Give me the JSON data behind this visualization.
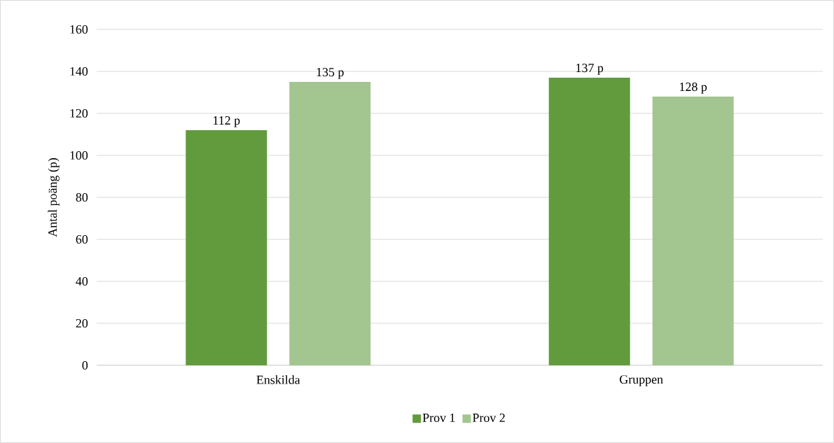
{
  "chart_data": {
    "type": "bar",
    "ylabel": "Antal poäng (p)",
    "categories": [
      "Enskilda",
      "Gruppen"
    ],
    "series": [
      {
        "name": "Prov 1",
        "color": "#629b3d",
        "values": [
          112,
          137
        ],
        "value_labels": [
          "112 p",
          "137 p"
        ]
      },
      {
        "name": "Prov 2",
        "color": "#a3c58f",
        "values": [
          135,
          128
        ],
        "value_labels": [
          "135 p",
          "128 p"
        ]
      }
    ],
    "ylim": [
      0,
      160
    ],
    "yticks": [
      0,
      20,
      40,
      60,
      80,
      100,
      120,
      140,
      160
    ],
    "grid": "y",
    "legend": "bottom"
  }
}
